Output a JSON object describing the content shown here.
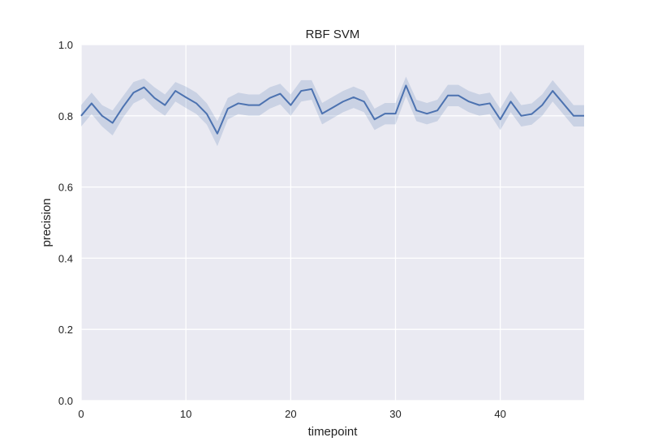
{
  "chart_data": {
    "type": "line",
    "title": "RBF SVM",
    "xlabel": "timepoint",
    "ylabel": "precision",
    "xlim": [
      0,
      48
    ],
    "ylim": [
      0.0,
      1.0
    ],
    "xticks": [
      0,
      10,
      20,
      30,
      40
    ],
    "xtick_labels": [
      "0",
      "10",
      "20",
      "30",
      "40"
    ],
    "yticks": [
      0.0,
      0.2,
      0.4,
      0.6,
      0.8,
      1.0
    ],
    "ytick_labels": [
      "0.0",
      "0.2",
      "0.4",
      "0.6",
      "0.8",
      "1.0"
    ],
    "grid": true,
    "colors": {
      "background": "#eaeaf2",
      "grid": "#ffffff",
      "line": "#4c72b0",
      "band": "#4c72b0"
    },
    "series": [
      {
        "x": [
          0,
          1,
          2,
          3,
          4,
          5,
          6,
          7,
          8,
          9,
          10,
          11,
          12,
          13,
          14,
          15,
          16,
          17,
          18,
          19,
          20,
          21,
          22,
          23,
          24,
          25,
          26,
          27,
          28,
          29,
          30,
          31,
          32,
          33,
          34,
          35,
          36,
          37,
          38,
          39,
          40,
          41,
          42,
          43,
          44,
          45,
          46,
          47,
          48
        ],
        "values": [
          0.8,
          0.835,
          0.8,
          0.78,
          0.825,
          0.865,
          0.88,
          0.85,
          0.83,
          0.87,
          0.852,
          0.835,
          0.805,
          0.75,
          0.82,
          0.835,
          0.83,
          0.83,
          0.85,
          0.862,
          0.83,
          0.87,
          0.875,
          0.806,
          0.823,
          0.84,
          0.852,
          0.84,
          0.79,
          0.806,
          0.806,
          0.885,
          0.815,
          0.806,
          0.815,
          0.857,
          0.857,
          0.84,
          0.83,
          0.835,
          0.79,
          0.84,
          0.8,
          0.805,
          0.83,
          0.87,
          0.835,
          0.8,
          0.8
        ],
        "lower": [
          0.77,
          0.805,
          0.77,
          0.745,
          0.795,
          0.835,
          0.85,
          0.82,
          0.8,
          0.84,
          0.822,
          0.805,
          0.775,
          0.715,
          0.79,
          0.805,
          0.8,
          0.8,
          0.82,
          0.832,
          0.8,
          0.84,
          0.845,
          0.776,
          0.793,
          0.81,
          0.822,
          0.81,
          0.76,
          0.776,
          0.776,
          0.855,
          0.785,
          0.776,
          0.785,
          0.827,
          0.827,
          0.81,
          0.8,
          0.805,
          0.76,
          0.81,
          0.77,
          0.775,
          0.8,
          0.84,
          0.805,
          0.77,
          0.77
        ],
        "upper": [
          0.83,
          0.865,
          0.83,
          0.815,
          0.855,
          0.895,
          0.905,
          0.88,
          0.86,
          0.895,
          0.882,
          0.865,
          0.835,
          0.785,
          0.85,
          0.865,
          0.86,
          0.86,
          0.88,
          0.89,
          0.86,
          0.9,
          0.9,
          0.836,
          0.853,
          0.87,
          0.882,
          0.87,
          0.82,
          0.836,
          0.836,
          0.91,
          0.845,
          0.836,
          0.845,
          0.887,
          0.887,
          0.87,
          0.86,
          0.865,
          0.82,
          0.87,
          0.83,
          0.835,
          0.86,
          0.9,
          0.865,
          0.83,
          0.83
        ]
      }
    ]
  }
}
